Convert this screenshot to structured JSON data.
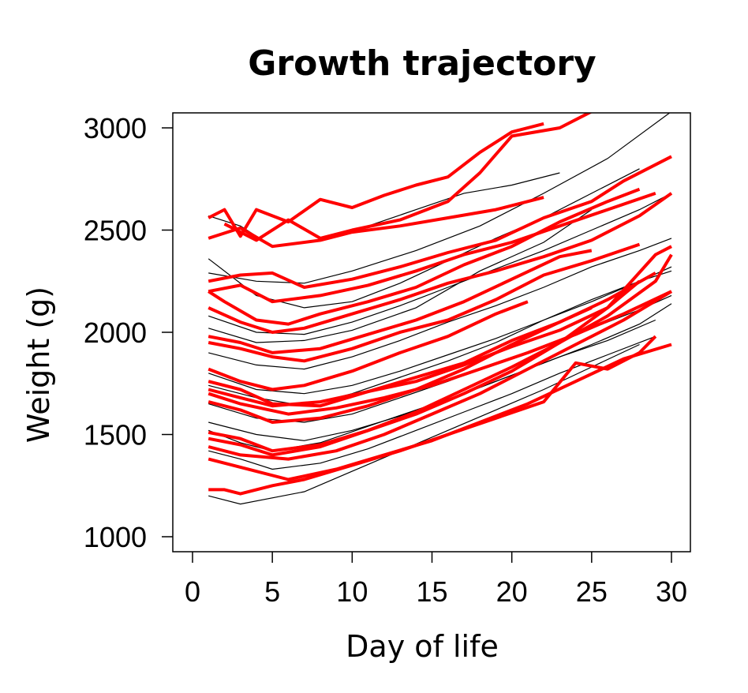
{
  "chart_data": {
    "type": "line",
    "title": "Growth  trajectory",
    "xlabel": "Day of life",
    "ylabel": "Weight (g)",
    "xlim": [
      0,
      30
    ],
    "ylim": [
      1000,
      3000
    ],
    "x_ticks": [
      0,
      5,
      10,
      15,
      20,
      25,
      30
    ],
    "y_ticks": [
      1000,
      1500,
      2000,
      2500,
      3000
    ],
    "grid": false,
    "legend": "none",
    "colors": {
      "thick": "#ff0000",
      "thin": "#000000"
    },
    "series": [
      {
        "group": "thick",
        "x": [
          1,
          3,
          5,
          8,
          10,
          13,
          16,
          19,
          22
        ],
        "values": [
          2460,
          2510,
          2420,
          2450,
          2490,
          2520,
          2560,
          2600,
          2660
        ]
      },
      {
        "group": "thick",
        "x": [
          1,
          2,
          3,
          4,
          6,
          8,
          10,
          12,
          14,
          16,
          18,
          20,
          22
        ],
        "values": [
          2560,
          2600,
          2470,
          2600,
          2540,
          2650,
          2610,
          2670,
          2720,
          2760,
          2880,
          2980,
          3020
        ]
      },
      {
        "group": "thick",
        "x": [
          2,
          4,
          6,
          8,
          10,
          13,
          16,
          18,
          20,
          23,
          25
        ],
        "values": [
          2530,
          2450,
          2550,
          2460,
          2500,
          2550,
          2640,
          2780,
          2960,
          3000,
          3080
        ]
      },
      {
        "group": "thick",
        "x": [
          1,
          3,
          5,
          7,
          10,
          13,
          16,
          19,
          22,
          25,
          27,
          30
        ],
        "values": [
          2250,
          2280,
          2290,
          2220,
          2260,
          2320,
          2390,
          2450,
          2560,
          2640,
          2740,
          2860
        ]
      },
      {
        "group": "thick",
        "x": [
          1,
          3,
          5,
          8,
          11,
          14,
          17,
          20,
          23,
          26,
          29
        ],
        "values": [
          2200,
          2230,
          2150,
          2180,
          2230,
          2300,
          2380,
          2440,
          2520,
          2600,
          2680
        ]
      },
      {
        "group": "thick",
        "x": [
          1,
          2,
          4,
          6,
          8,
          11,
          14,
          17,
          20,
          23,
          26,
          28
        ],
        "values": [
          2200,
          2150,
          2060,
          2040,
          2090,
          2150,
          2220,
          2330,
          2420,
          2540,
          2640,
          2700
        ]
      },
      {
        "group": "thick",
        "x": [
          1,
          3,
          5,
          7,
          10,
          13,
          16,
          19,
          22,
          25,
          28,
          30
        ],
        "values": [
          2120,
          2050,
          2000,
          2020,
          2090,
          2160,
          2240,
          2300,
          2370,
          2450,
          2570,
          2680
        ]
      },
      {
        "group": "thick",
        "x": [
          1,
          3,
          5,
          8,
          11,
          14,
          17,
          20,
          23,
          25
        ],
        "values": [
          1980,
          1950,
          1900,
          1920,
          1990,
          2060,
          2150,
          2260,
          2370,
          2400
        ]
      },
      {
        "group": "thick",
        "x": [
          1,
          3,
          5,
          7,
          10,
          13,
          16,
          19,
          22,
          25,
          28
        ],
        "values": [
          1950,
          1920,
          1880,
          1860,
          1920,
          2000,
          2060,
          2160,
          2280,
          2350,
          2430
        ]
      },
      {
        "group": "thick",
        "x": [
          1,
          3,
          5,
          7,
          10,
          13,
          16,
          19,
          21
        ],
        "values": [
          1820,
          1760,
          1720,
          1740,
          1810,
          1900,
          1980,
          2090,
          2150
        ]
      },
      {
        "group": "thick",
        "x": [
          1,
          3,
          5,
          8,
          11,
          14,
          17,
          20,
          23,
          26,
          29
        ],
        "values": [
          1760,
          1720,
          1650,
          1640,
          1710,
          1780,
          1850,
          1960,
          2050,
          2160,
          2290
        ]
      },
      {
        "group": "thick",
        "x": [
          1,
          3,
          5,
          8,
          11,
          14,
          17,
          20,
          23,
          26,
          29,
          30
        ],
        "values": [
          1720,
          1680,
          1640,
          1660,
          1710,
          1760,
          1840,
          1930,
          2010,
          2120,
          2380,
          2420
        ]
      },
      {
        "group": "thick",
        "x": [
          1,
          3,
          6,
          9,
          12,
          15,
          18,
          21,
          24,
          27,
          30
        ],
        "values": [
          1700,
          1650,
          1600,
          1630,
          1680,
          1740,
          1820,
          1900,
          1990,
          2090,
          2200
        ]
      },
      {
        "group": "thick",
        "x": [
          1,
          3,
          5,
          8,
          11,
          14,
          17,
          20,
          23,
          25
        ],
        "values": [
          1660,
          1620,
          1560,
          1580,
          1640,
          1720,
          1820,
          1940,
          2050,
          2120
        ]
      },
      {
        "group": "thick",
        "x": [
          1,
          3,
          5,
          8,
          11,
          14,
          17,
          20,
          23,
          26,
          28
        ],
        "values": [
          1510,
          1480,
          1420,
          1450,
          1520,
          1600,
          1700,
          1810,
          1950,
          2120,
          2250
        ]
      },
      {
        "group": "thick",
        "x": [
          1,
          3,
          5,
          8,
          11,
          14,
          17,
          20,
          23,
          26,
          29,
          30
        ],
        "values": [
          1480,
          1450,
          1400,
          1440,
          1520,
          1610,
          1720,
          1830,
          1950,
          2080,
          2250,
          2380
        ]
      },
      {
        "group": "thick",
        "x": [
          1,
          3,
          6,
          9,
          12,
          15,
          18,
          21,
          24,
          27,
          30
        ],
        "values": [
          1440,
          1400,
          1380,
          1420,
          1500,
          1600,
          1700,
          1820,
          1940,
          2060,
          2200
        ]
      },
      {
        "group": "thick",
        "x": [
          1,
          3,
          6,
          9,
          12,
          15,
          18,
          21,
          24,
          27,
          30
        ],
        "values": [
          1380,
          1340,
          1280,
          1330,
          1400,
          1470,
          1560,
          1650,
          1760,
          1870,
          1940
        ]
      },
      {
        "group": "thick",
        "x": [
          1,
          2,
          3,
          5,
          7,
          10,
          13,
          16,
          19,
          22,
          24,
          26,
          28,
          29
        ],
        "values": [
          1230,
          1230,
          1210,
          1250,
          1280,
          1350,
          1420,
          1500,
          1580,
          1660,
          1850,
          1820,
          1900,
          1980
        ]
      },
      {
        "group": "thin",
        "x": [
          1,
          3,
          5,
          8,
          11,
          14,
          17,
          20,
          23
        ],
        "values": [
          2570,
          2520,
          2420,
          2450,
          2520,
          2600,
          2680,
          2720,
          2780
        ]
      },
      {
        "group": "thin",
        "x": [
          1,
          4,
          7,
          10,
          14,
          18,
          22,
          26,
          30
        ],
        "values": [
          2290,
          2250,
          2240,
          2300,
          2400,
          2520,
          2680,
          2850,
          3080
        ]
      },
      {
        "group": "thin",
        "x": [
          1,
          4,
          7,
          10,
          13,
          16,
          19,
          22,
          25,
          28
        ],
        "values": [
          2360,
          2180,
          2120,
          2150,
          2240,
          2350,
          2460,
          2560,
          2680,
          2800
        ]
      },
      {
        "group": "thin",
        "x": [
          1,
          4,
          7,
          10,
          14,
          18,
          22,
          25
        ],
        "values": [
          2020,
          1950,
          1960,
          2010,
          2120,
          2300,
          2440,
          2600
        ]
      },
      {
        "group": "thin",
        "x": [
          1,
          4,
          7,
          10,
          13,
          16,
          19,
          22,
          25,
          28,
          30
        ],
        "values": [
          1900,
          1840,
          1820,
          1880,
          1960,
          2050,
          2130,
          2220,
          2320,
          2400,
          2460
        ]
      },
      {
        "group": "thin",
        "x": [
          1,
          4,
          7,
          10,
          13,
          16,
          19,
          22,
          25,
          28,
          30
        ],
        "values": [
          1800,
          1720,
          1700,
          1740,
          1810,
          1890,
          1970,
          2060,
          2150,
          2250,
          2300
        ]
      },
      {
        "group": "thin",
        "x": [
          1,
          4,
          7,
          10,
          13,
          16,
          19,
          22,
          25,
          28,
          30
        ],
        "values": [
          1650,
          1580,
          1560,
          1600,
          1680,
          1760,
          1850,
          1930,
          2020,
          2110,
          2180
        ]
      },
      {
        "group": "thin",
        "x": [
          1,
          4,
          7,
          10,
          13,
          16,
          19,
          22,
          25,
          28,
          30
        ],
        "values": [
          1560,
          1500,
          1470,
          1520,
          1590,
          1670,
          1760,
          1850,
          1940,
          2040,
          2140
        ]
      },
      {
        "group": "thin",
        "x": [
          1,
          3,
          5,
          8,
          11,
          14,
          17,
          20,
          23,
          26,
          29
        ],
        "values": [
          1520,
          1460,
          1420,
          1460,
          1540,
          1620,
          1700,
          1790,
          1880,
          1960,
          2060
        ]
      },
      {
        "group": "thin",
        "x": [
          1,
          3,
          5,
          8,
          11,
          14,
          17,
          20,
          23,
          26,
          29
        ],
        "values": [
          1420,
          1380,
          1330,
          1360,
          1430,
          1520,
          1610,
          1700,
          1800,
          1890,
          1980
        ]
      },
      {
        "group": "thin",
        "x": [
          1,
          3,
          7,
          10,
          13,
          16,
          19,
          22,
          25,
          28
        ],
        "values": [
          1200,
          1160,
          1220,
          1320,
          1420,
          1520,
          1620,
          1720,
          1830,
          1940
        ]
      },
      {
        "group": "thin",
        "x": [
          1,
          4,
          7,
          10,
          13,
          16,
          19,
          22,
          25,
          28,
          30
        ],
        "values": [
          1740,
          1680,
          1640,
          1700,
          1780,
          1860,
          1950,
          2060,
          2160,
          2250,
          2320
        ]
      },
      {
        "group": "thin",
        "x": [
          1,
          4,
          7,
          10,
          13,
          16,
          19,
          22,
          25,
          28,
          30
        ],
        "values": [
          2080,
          2000,
          1990,
          2050,
          2130,
          2220,
          2310,
          2400,
          2500,
          2600,
          2680
        ]
      }
    ]
  }
}
